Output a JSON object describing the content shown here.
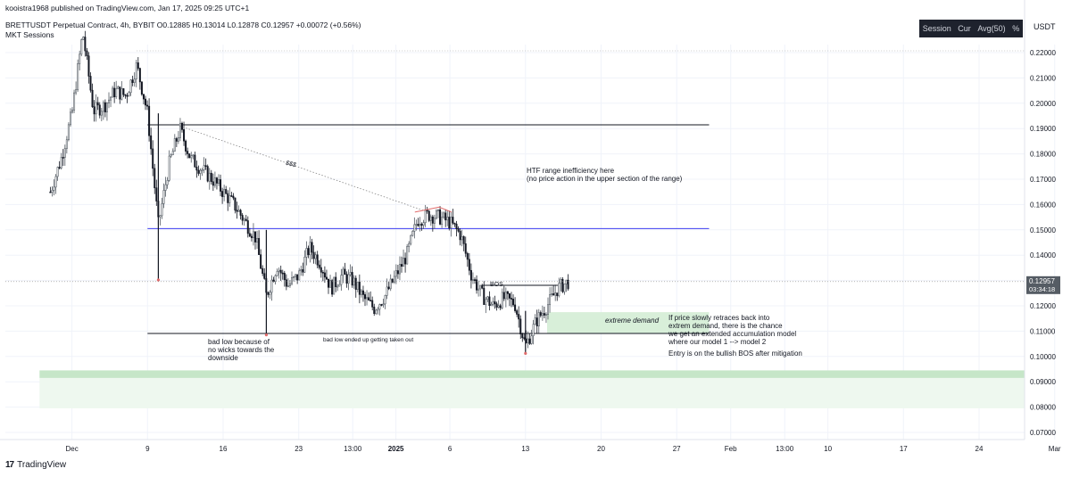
{
  "publisher": "kooistra1968 published on TradingView.com, Jan 17, 2025 09:25 UTC+1",
  "symbol_line": "BRETTUSDT Perpetual Contract, 4h, BYBIT  O0.12885  H0.13014  L0.12878  C0.12957  +0.00072 (+0.56%)",
  "indicator": "MKT Sessions",
  "session_box": [
    "Session",
    "Cur",
    "Avg(50)",
    "%"
  ],
  "currency": "USDT",
  "brand": "TradingView",
  "price_tag": {
    "price": "0.12957",
    "countdown": "03:34:18"
  },
  "colors": {
    "up": "#555c64",
    "down": "#131722",
    "level_line": "#3d3df0",
    "demand_zone": "#d8efd9",
    "lower_zone": "#c6e6c8",
    "lower_zone_light": "#eef8ef",
    "grid": "#f0f3fa"
  },
  "chart_data": {
    "type": "candlestick",
    "x_ticks": [
      "Dec",
      "9",
      "16",
      "23",
      "13:00",
      "2025",
      "6",
      "13",
      "20",
      "27",
      "Feb",
      "13:00",
      "10",
      "17",
      "24",
      "Mar"
    ],
    "y_ticks": [
      "0.22000",
      "0.21000",
      "0.20000",
      "0.19000",
      "0.18000",
      "0.17000",
      "0.16000",
      "0.15000",
      "0.14000",
      "0.13000",
      "0.12000",
      "0.11000",
      "0.10000",
      "0.09000",
      "0.08000",
      "0.07000"
    ],
    "ylim": [
      0.065,
      0.235
    ],
    "last_price": 0.12957,
    "price_path": [
      {
        "date": "2024-11-30",
        "price": 0.165
      },
      {
        "date": "2024-12-01",
        "price": 0.178
      },
      {
        "date": "2024-12-02",
        "price": 0.196
      },
      {
        "date": "2024-12-03",
        "price": 0.228
      },
      {
        "date": "2024-12-04",
        "price": 0.197
      },
      {
        "date": "2024-12-05",
        "price": 0.199
      },
      {
        "date": "2024-12-06",
        "price": 0.205
      },
      {
        "date": "2024-12-07",
        "price": 0.203
      },
      {
        "date": "2024-12-08",
        "price": 0.215
      },
      {
        "date": "2024-12-09",
        "price": 0.196
      },
      {
        "date": "2024-12-10",
        "price": 0.152
      },
      {
        "date": "2024-12-11",
        "price": 0.176
      },
      {
        "date": "2024-12-12",
        "price": 0.19
      },
      {
        "date": "2024-12-13",
        "price": 0.178
      },
      {
        "date": "2024-12-15",
        "price": 0.17
      },
      {
        "date": "2024-12-17",
        "price": 0.16
      },
      {
        "date": "2024-12-19",
        "price": 0.147
      },
      {
        "date": "2024-12-20",
        "price": 0.124
      },
      {
        "date": "2024-12-21",
        "price": 0.136
      },
      {
        "date": "2024-12-22",
        "price": 0.128
      },
      {
        "date": "2024-12-23",
        "price": 0.132
      },
      {
        "date": "2024-12-24",
        "price": 0.143
      },
      {
        "date": "2024-12-25",
        "price": 0.137
      },
      {
        "date": "2024-12-26",
        "price": 0.127
      },
      {
        "date": "2024-12-27",
        "price": 0.132
      },
      {
        "date": "2024-12-28",
        "price": 0.13
      },
      {
        "date": "2024-12-29",
        "price": 0.123
      },
      {
        "date": "2024-12-30",
        "price": 0.119
      },
      {
        "date": "2024-12-31",
        "price": 0.124
      },
      {
        "date": "2025-01-01",
        "price": 0.132
      },
      {
        "date": "2025-01-02",
        "price": 0.14
      },
      {
        "date": "2025-01-03",
        "price": 0.154
      },
      {
        "date": "2025-01-04",
        "price": 0.156
      },
      {
        "date": "2025-01-05",
        "price": 0.155
      },
      {
        "date": "2025-01-06",
        "price": 0.153
      },
      {
        "date": "2025-01-07",
        "price": 0.148
      },
      {
        "date": "2025-01-08",
        "price": 0.132
      },
      {
        "date": "2025-01-09",
        "price": 0.124
      },
      {
        "date": "2025-01-10",
        "price": 0.12
      },
      {
        "date": "2025-01-11",
        "price": 0.123
      },
      {
        "date": "2025-01-12",
        "price": 0.121
      },
      {
        "date": "2025-01-13",
        "price": 0.104
      },
      {
        "date": "2025-01-14",
        "price": 0.114
      },
      {
        "date": "2025-01-15",
        "price": 0.12
      },
      {
        "date": "2025-01-16",
        "price": 0.127
      },
      {
        "date": "2025-01-17",
        "price": 0.12957
      }
    ],
    "levels": [
      {
        "price": 0.1915,
        "style": "black"
      },
      {
        "price": 0.1505,
        "style": "blue"
      },
      {
        "price": 0.1091,
        "style": "black"
      }
    ],
    "zones": [
      {
        "from": 0.1092,
        "to": 0.1175,
        "start": "2025-01-15",
        "end": "2025-01-30"
      },
      {
        "from": 0.0915,
        "to": 0.0945,
        "start": "2024-11-29",
        "end": "2025-03-03"
      },
      {
        "from": 0.0795,
        "to": 0.0915,
        "start": "2024-11-29",
        "end": "2025-03-03"
      }
    ],
    "annotations": {
      "sss": "$$$",
      "htf": [
        "HTF range inefficiency here",
        "(no price action in the upper section of the range)"
      ],
      "bos": "BOS",
      "demand": "extreme demand",
      "bad_low": [
        "bad low because of",
        "no wicks towards the",
        "downside"
      ],
      "taken_out": "bad low ended up getting taken out",
      "retrace": [
        "If price slowly retraces back into",
        "extrem demand, there is the chance",
        "we get an extended accumulation model",
        "where our model 1 --> model 2"
      ],
      "entry": "Entry is on the bullish BOS after mitigation"
    }
  }
}
